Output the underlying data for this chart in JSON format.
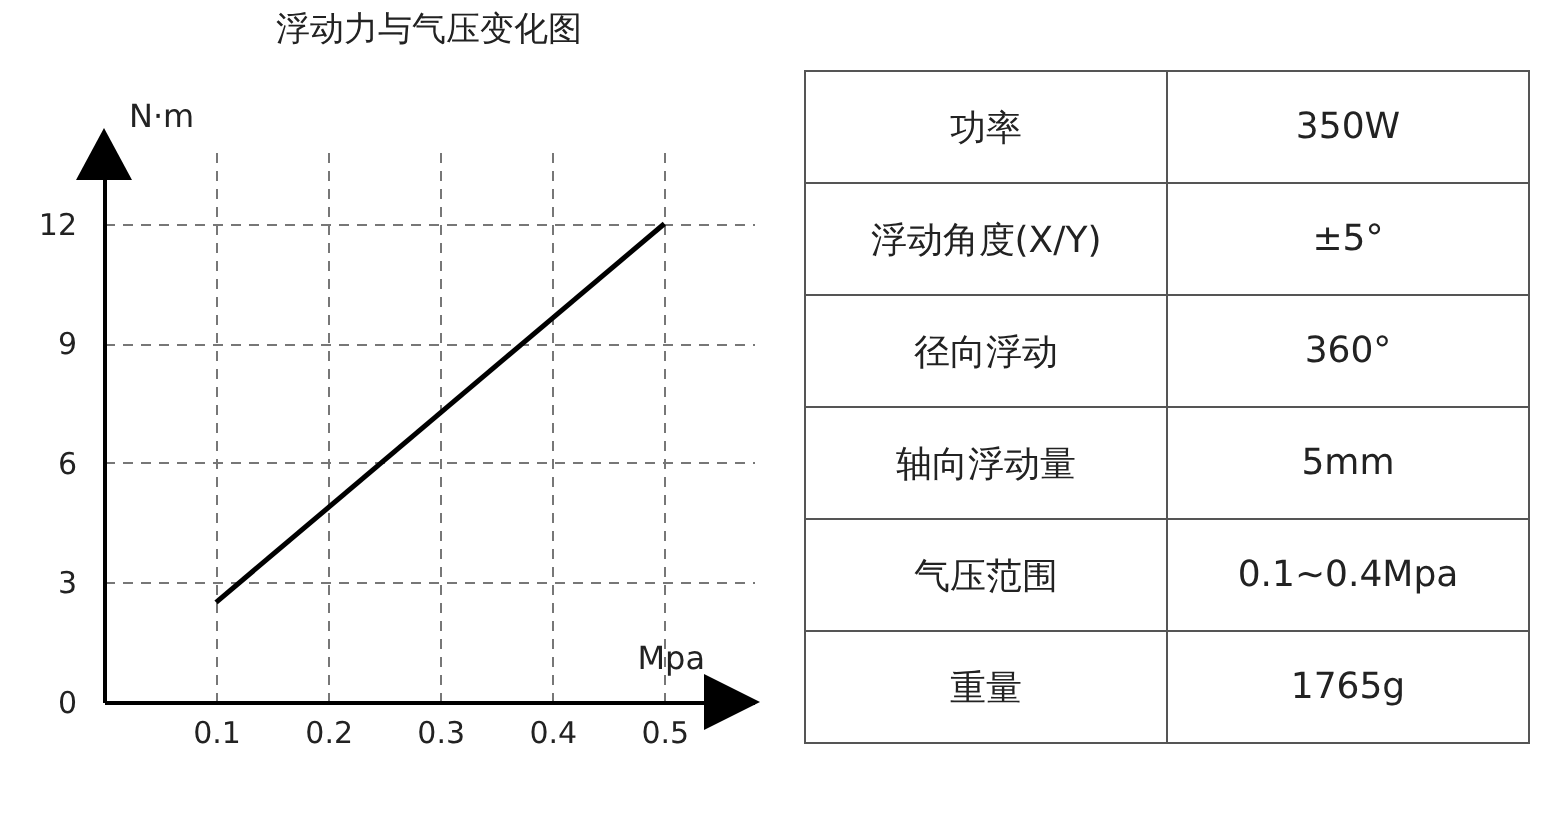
{
  "chart_data": [
    {
      "type": "line",
      "title": "浮动力与气压变化图",
      "xlabel": "Mpa",
      "ylabel": "N·m",
      "series": [
        {
          "color": "#000000",
          "x": [
            0.1,
            0.5
          ],
          "values": [
            2.5,
            12
          ]
        }
      ],
      "xlim": [
        0,
        0.58
      ],
      "xticks": [
        0.1,
        0.2,
        0.3,
        0.4,
        0.5
      ],
      "ylim": [
        0,
        13.8
      ],
      "yticks": [
        0,
        3,
        6,
        9,
        12
      ],
      "grid": true,
      "marker": "none",
      "line_style": "solid"
    },
    {
      "type": "other",
      "annotations": [
        "功率",
        "350W",
        "浮动角度(X/Y)",
        "±5°",
        "径向浮动",
        "360°",
        "轴向浮动量",
        "5mm",
        "气压范围",
        "0.1~0.4Mpa",
        "重量",
        "1765g"
      ]
    }
  ]
}
